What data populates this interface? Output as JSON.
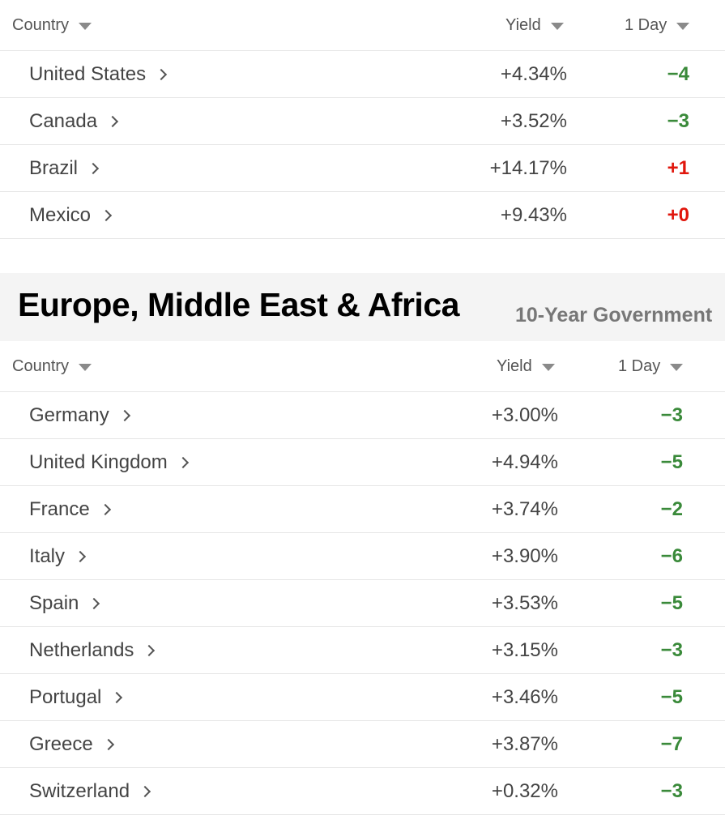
{
  "americas": {
    "headers": {
      "country": "Country",
      "yield": "Yield",
      "day": "1 Day"
    },
    "rows": [
      {
        "country": "United States",
        "yield": "+4.34%",
        "change": "−4",
        "direction": "down"
      },
      {
        "country": "Canada",
        "yield": "+3.52%",
        "change": "−3",
        "direction": "down"
      },
      {
        "country": "Brazil",
        "yield": "+14.17%",
        "change": "+1",
        "direction": "up"
      },
      {
        "country": "Mexico",
        "yield": "+9.43%",
        "change": "+0",
        "direction": "up"
      }
    ]
  },
  "emea": {
    "title": "Europe, Middle East & Africa",
    "subtitle": "10-Year Government",
    "headers": {
      "country": "Country",
      "yield": "Yield",
      "day": "1 Day"
    },
    "rows": [
      {
        "country": "Germany",
        "yield": "+3.00%",
        "change": "−3",
        "direction": "down"
      },
      {
        "country": "United Kingdom",
        "yield": "+4.94%",
        "change": "−5",
        "direction": "down"
      },
      {
        "country": "France",
        "yield": "+3.74%",
        "change": "−2",
        "direction": "down"
      },
      {
        "country": "Italy",
        "yield": "+3.90%",
        "change": "−6",
        "direction": "down"
      },
      {
        "country": "Spain",
        "yield": "+3.53%",
        "change": "−5",
        "direction": "down"
      },
      {
        "country": "Netherlands",
        "yield": "+3.15%",
        "change": "−3",
        "direction": "down"
      },
      {
        "country": "Portugal",
        "yield": "+3.46%",
        "change": "−5",
        "direction": "down"
      },
      {
        "country": "Greece",
        "yield": "+3.87%",
        "change": "−7",
        "direction": "down"
      },
      {
        "country": "Switzerland",
        "yield": "+0.32%",
        "change": "−3",
        "direction": "down"
      }
    ]
  },
  "colors": {
    "negative": "#3a8a3a",
    "positive": "#e0160c"
  },
  "icons": {
    "sort": "caret-down-icon",
    "row": "chevron-right-icon"
  }
}
